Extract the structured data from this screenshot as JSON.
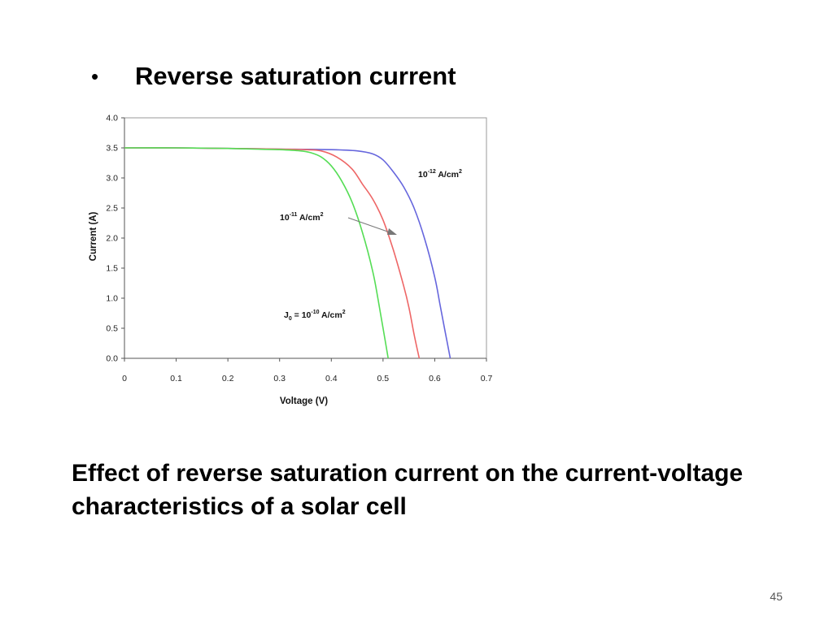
{
  "slide": {
    "bullet_glyph": "•",
    "heading": "Reverse saturation current",
    "caption": "Effect of reverse saturation current on the current-voltage characteristics of a solar cell",
    "page_number": "45"
  },
  "chart_data": {
    "type": "line",
    "title": "",
    "xlabel": "Voltage (V)",
    "ylabel": "Current (A)",
    "xlim": [
      0,
      0.7
    ],
    "ylim": [
      0,
      4.0
    ],
    "x_ticks": [
      "0",
      "0.1",
      "0.2",
      "0.3",
      "0.4",
      "0.5",
      "0.6",
      "0.7"
    ],
    "y_ticks": [
      "0.0",
      "0.5",
      "1.0",
      "1.5",
      "2.0",
      "2.5",
      "3.0",
      "3.5",
      "4.0"
    ],
    "grid": false,
    "series": [
      {
        "color": "#6666dd",
        "x": [
          0,
          0.1,
          0.2,
          0.3,
          0.4,
          0.45,
          0.48,
          0.5,
          0.52,
          0.54,
          0.56,
          0.58,
          0.6,
          0.61,
          0.62,
          0.63
        ],
        "y": [
          3.5,
          3.5,
          3.49,
          3.48,
          3.47,
          3.45,
          3.4,
          3.3,
          3.1,
          2.85,
          2.5,
          2.0,
          1.35,
          0.9,
          0.45,
          0.0
        ]
      },
      {
        "color": "#ee6666",
        "x": [
          0,
          0.1,
          0.2,
          0.3,
          0.35,
          0.38,
          0.41,
          0.44,
          0.46,
          0.48,
          0.5,
          0.52,
          0.54,
          0.55,
          0.56,
          0.57
        ],
        "y": [
          3.5,
          3.5,
          3.49,
          3.48,
          3.47,
          3.45,
          3.35,
          3.15,
          2.9,
          2.65,
          2.3,
          1.8,
          1.2,
          0.85,
          0.4,
          0.0
        ]
      },
      {
        "color": "#55dd55",
        "x": [
          0,
          0.1,
          0.2,
          0.25,
          0.3,
          0.34,
          0.36,
          0.38,
          0.4,
          0.42,
          0.44,
          0.46,
          0.48,
          0.49,
          0.5,
          0.51
        ],
        "y": [
          3.5,
          3.5,
          3.49,
          3.48,
          3.47,
          3.45,
          3.42,
          3.35,
          3.2,
          2.95,
          2.6,
          2.1,
          1.45,
          1.0,
          0.5,
          0.0
        ]
      }
    ],
    "annotations": [
      {
        "base": "10",
        "exp": "-12",
        "unit": " A/cm",
        "unit_exp": "2",
        "series_index": 0
      },
      {
        "base": "10",
        "exp": "-11",
        "unit": " A/cm",
        "unit_exp": "2",
        "series_index": 1,
        "arrow": true
      },
      {
        "prefix": "J",
        "prefix_sub": "0",
        "mid": " = ",
        "base": "10",
        "exp": "-10",
        "unit": " A/cm",
        "unit_exp": "2",
        "series_index": 2
      }
    ]
  }
}
